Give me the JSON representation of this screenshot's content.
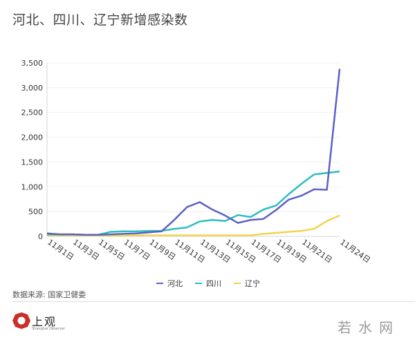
{
  "title": "河北、四川、辽宁新增感染数",
  "source": "数据来源: 国家卫健委",
  "logo": {
    "name": "上观",
    "subtitle": "Shanghai Observer"
  },
  "watermark": "若水网",
  "colors": {
    "hebei": "#5b5fc7",
    "sichuan": "#2bbdc0",
    "liaoning": "#f2d34f",
    "grid": "#efefef",
    "axis": "#d5d5d5"
  },
  "chart_data": {
    "type": "line",
    "title": "河北、四川、辽宁新增感染数",
    "xlabel": "",
    "ylabel": "",
    "ylim": [
      0,
      3500
    ],
    "yticks": [
      0,
      500,
      1000,
      1500,
      2000,
      2500,
      3000,
      3500
    ],
    "ytick_labels": [
      "0",
      "500",
      "1,000",
      "1,500",
      "2,000",
      "2,500",
      "3,000",
      "3,500"
    ],
    "x": [
      "11月1日",
      "11月2日",
      "11月3日",
      "11月4日",
      "11月5日",
      "11月6日",
      "11月7日",
      "11月8日",
      "11月9日",
      "11月10日",
      "11月11日",
      "11月12日",
      "11月13日",
      "11月14日",
      "11月15日",
      "11月16日",
      "11月17日",
      "11月18日",
      "11月19日",
      "11月20日",
      "11月21日",
      "11月22日",
      "11月23日",
      "11月24日"
    ],
    "xtick_labels": [
      "11月1日",
      "11月3日",
      "11月5日",
      "11月7日",
      "11月9日",
      "11月11日",
      "11月13日",
      "11月15日",
      "11月17日",
      "11月19日",
      "11月21日",
      "11月24日"
    ],
    "xtick_indices": [
      0,
      2,
      4,
      6,
      8,
      10,
      12,
      14,
      16,
      18,
      20,
      23
    ],
    "grid": true,
    "legend_position": "bottom",
    "series": [
      {
        "name": "河北",
        "color": "#5b5fc7",
        "values": [
          60,
          40,
          40,
          30,
          30,
          40,
          50,
          60,
          80,
          100,
          330,
          590,
          690,
          540,
          420,
          270,
          330,
          350,
          530,
          740,
          820,
          950,
          940,
          3380
        ]
      },
      {
        "name": "四川",
        "color": "#2bbdc0",
        "values": [
          40,
          40,
          40,
          30,
          30,
          90,
          100,
          100,
          110,
          110,
          150,
          180,
          300,
          330,
          310,
          430,
          390,
          540,
          620,
          850,
          1060,
          1250,
          1280,
          1310
        ]
      },
      {
        "name": "辽宁",
        "color": "#f2d34f",
        "values": [
          20,
          20,
          20,
          20,
          20,
          10,
          10,
          20,
          20,
          20,
          20,
          20,
          20,
          20,
          20,
          20,
          20,
          50,
          70,
          90,
          110,
          150,
          310,
          420
        ]
      }
    ]
  }
}
